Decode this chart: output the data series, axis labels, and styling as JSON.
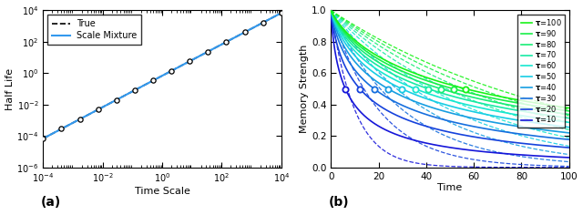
{
  "panel_a": {
    "xlabel": "Time Scale",
    "ylabel": "Half Life",
    "label_a": "(a)",
    "legend_true": "True",
    "legend_sm": "Scale Mixture",
    "xlim_pow": [
      -4,
      4
    ],
    "ylim_pow": [
      -6,
      4
    ],
    "n_comp": 10,
    "comp_tau_pow_low": -4,
    "comp_tau_pow_high": 4,
    "blue_color": "#3399ee"
  },
  "panel_b": {
    "xlabel": "Time",
    "ylabel": "Memory Strength",
    "label_b": "(b)",
    "taus": [
      10,
      20,
      30,
      40,
      50,
      60,
      70,
      80,
      90,
      100
    ],
    "xlim": [
      0,
      100
    ],
    "ylim": [
      0,
      1
    ]
  },
  "fig_width": 6.4,
  "fig_height": 2.36,
  "dpi": 100
}
